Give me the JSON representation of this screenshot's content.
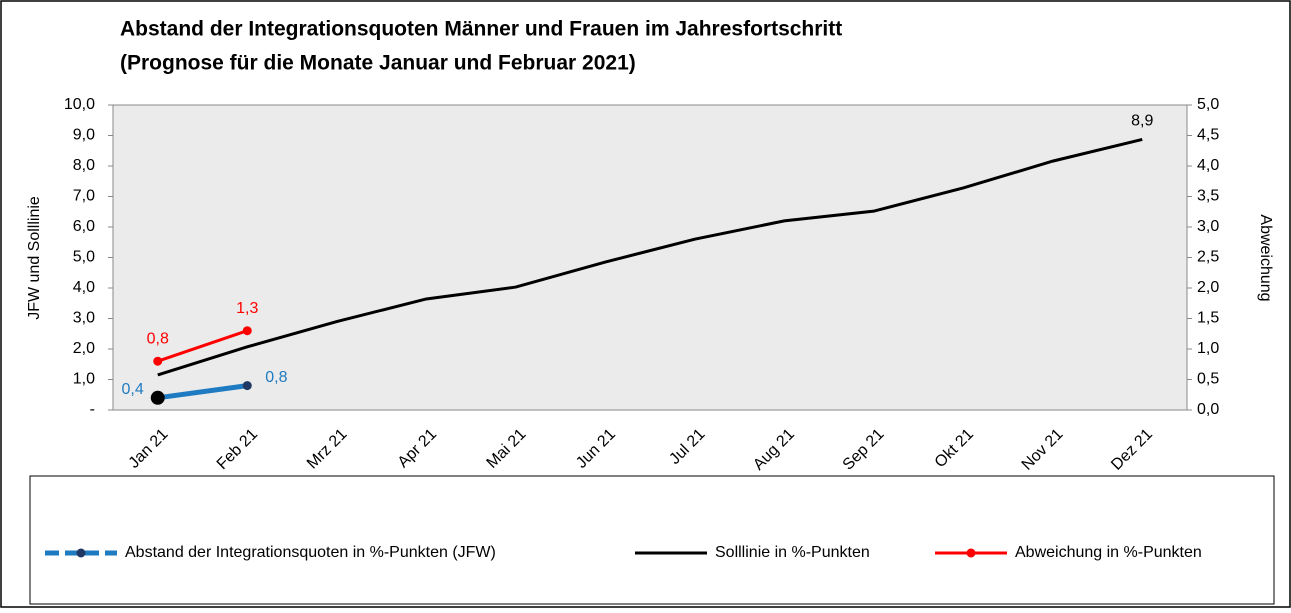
{
  "chart_data": {
    "type": "line",
    "title": [
      "Abstand der Integrationsquoten Männer und Frauen im Jahresfortschritt",
      "(Prognose für die Monate Januar und Februar 2021)"
    ],
    "ylabel": "JFW und Solllinie",
    "y2label": "Abweichung",
    "categories": [
      "Jan 21",
      "Feb 21",
      "Mrz 21",
      "Apr 21",
      "Mai 21",
      "Jun 21",
      "Jul 21",
      "Aug 21",
      "Sep 21",
      "Okt 21",
      "Nov 21",
      "Dez 21"
    ],
    "series": [
      {
        "name": "Abstand der Integrationsquoten in %-Punkten (JFW)",
        "color": "#1f7bc1",
        "values": [
          0.4,
          0.8,
          null,
          null,
          null,
          null,
          null,
          null,
          null,
          null,
          null,
          null
        ],
        "value_labels": [
          "0,4",
          "0,8",
          null,
          null,
          null,
          null,
          null,
          null,
          null,
          null,
          null,
          null
        ]
      },
      {
        "name": "Solllinie in %-Punkten",
        "color": "#000000",
        "values": [
          1.15,
          2.07,
          2.9,
          3.64,
          4.03,
          4.85,
          5.6,
          6.2,
          6.52,
          7.28,
          8.16,
          8.87
        ],
        "value_labels": [
          null,
          null,
          null,
          null,
          null,
          null,
          null,
          null,
          null,
          null,
          null,
          "8,9"
        ]
      },
      {
        "name": "Abweichung in %-Punkten",
        "color": "#ff0000",
        "axis": "y2",
        "values": [
          0.8,
          1.3,
          null,
          null,
          null,
          null,
          null,
          null,
          null,
          null,
          null,
          null
        ],
        "value_labels": [
          "0,8",
          "1,3",
          null,
          null,
          null,
          null,
          null,
          null,
          null,
          null,
          null,
          null
        ]
      }
    ],
    "ylim": [
      0,
      10
    ],
    "yticks": [
      {
        "value": 0,
        "label": "-"
      },
      {
        "value": 1,
        "label": "1,0"
      },
      {
        "value": 2,
        "label": "2,0"
      },
      {
        "value": 3,
        "label": "3,0"
      },
      {
        "value": 4,
        "label": "4,0"
      },
      {
        "value": 5,
        "label": "5,0"
      },
      {
        "value": 6,
        "label": "6,0"
      },
      {
        "value": 7,
        "label": "7,0"
      },
      {
        "value": 8,
        "label": "8,0"
      },
      {
        "value": 9,
        "label": "9,0"
      },
      {
        "value": 10,
        "label": "10,0"
      }
    ],
    "y2lim": [
      0,
      5
    ],
    "y2ticks": [
      {
        "value": 0,
        "label": "0,0"
      },
      {
        "value": 0.5,
        "label": "0,5"
      },
      {
        "value": 1,
        "label": "1,0"
      },
      {
        "value": 1.5,
        "label": "1,5"
      },
      {
        "value": 2,
        "label": "2,0"
      },
      {
        "value": 2.5,
        "label": "2,5"
      },
      {
        "value": 3,
        "label": "3,0"
      },
      {
        "value": 3.5,
        "label": "3,5"
      },
      {
        "value": 4,
        "label": "4,0"
      },
      {
        "value": 4.5,
        "label": "4,5"
      },
      {
        "value": 5,
        "label": "5,0"
      }
    ],
    "legend": "bottom"
  }
}
